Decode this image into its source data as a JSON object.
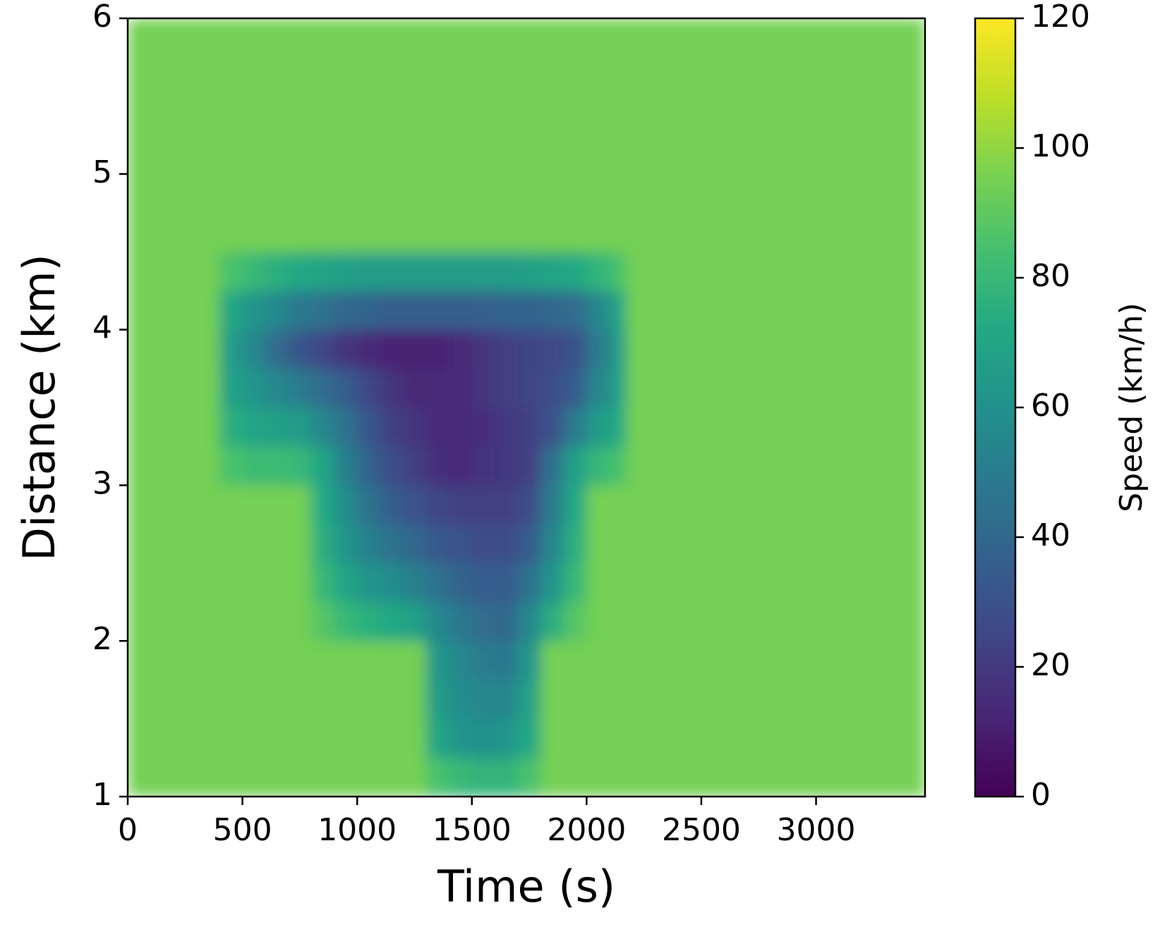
{
  "chart_data": {
    "type": "heatmap",
    "xlabel": "Time (s)",
    "ylabel": "Distance (km)",
    "colorbar_label": "Speed (km/h)",
    "colormap": "viridis",
    "xlim": [
      0,
      3475
    ],
    "xticks": [
      0,
      500,
      1000,
      1500,
      2000,
      2500,
      3000
    ],
    "ylim": [
      1,
      6
    ],
    "yticks": [
      1,
      2,
      3,
      4,
      5,
      6
    ],
    "zlim": [
      0,
      120
    ],
    "zticks": [
      0,
      20,
      40,
      60,
      80,
      100,
      120
    ],
    "x_bins": [
      0,
      400,
      500,
      600,
      700,
      800,
      900,
      1000,
      1100,
      1200,
      1300,
      1400,
      1500,
      1600,
      1700,
      1800,
      1900,
      2000,
      2100,
      2175,
      3475
    ],
    "y_bins": [
      1,
      1.25,
      1.5,
      1.75,
      2,
      2.25,
      2.5,
      2.75,
      3,
      3.25,
      3.5,
      3.75,
      4,
      4.25,
      4.5,
      6
    ],
    "z": [
      [
        95,
        95,
        95,
        95,
        95,
        95,
        95,
        95,
        95,
        95,
        85,
        80,
        78,
        78,
        85,
        95,
        95,
        95,
        95,
        95
      ],
      [
        95,
        95,
        95,
        95,
        95,
        95,
        95,
        95,
        95,
        95,
        70,
        62,
        60,
        62,
        72,
        95,
        95,
        95,
        95,
        95
      ],
      [
        95,
        95,
        95,
        95,
        95,
        95,
        95,
        95,
        95,
        95,
        65,
        58,
        55,
        55,
        68,
        95,
        95,
        95,
        95,
        95
      ],
      [
        95,
        95,
        95,
        95,
        95,
        95,
        95,
        95,
        95,
        95,
        62,
        55,
        50,
        48,
        62,
        95,
        95,
        95,
        95,
        95
      ],
      [
        95,
        95,
        95,
        95,
        95,
        88,
        80,
        75,
        72,
        68,
        55,
        48,
        42,
        40,
        55,
        75,
        88,
        95,
        95,
        95
      ],
      [
        95,
        95,
        95,
        95,
        95,
        80,
        70,
        62,
        58,
        52,
        45,
        38,
        35,
        35,
        45,
        62,
        80,
        95,
        95,
        95
      ],
      [
        95,
        95,
        95,
        95,
        95,
        75,
        62,
        52,
        45,
        40,
        33,
        30,
        28,
        28,
        35,
        55,
        75,
        95,
        95,
        95
      ],
      [
        95,
        95,
        95,
        95,
        95,
        72,
        58,
        45,
        35,
        30,
        25,
        22,
        22,
        22,
        28,
        50,
        72,
        95,
        95,
        95
      ],
      [
        95,
        85,
        82,
        82,
        80,
        70,
        52,
        38,
        28,
        22,
        16,
        15,
        17,
        20,
        22,
        45,
        68,
        80,
        85,
        95
      ],
      [
        95,
        75,
        70,
        68,
        65,
        55,
        45,
        32,
        22,
        18,
        15,
        15,
        16,
        20,
        22,
        30,
        50,
        65,
        72,
        95
      ],
      [
        95,
        68,
        62,
        55,
        50,
        42,
        35,
        25,
        18,
        14,
        14,
        15,
        18,
        22,
        24,
        28,
        35,
        55,
        68,
        95
      ],
      [
        95,
        65,
        55,
        42,
        32,
        25,
        18,
        14,
        12,
        11,
        12,
        14,
        18,
        22,
        24,
        26,
        30,
        50,
        65,
        95
      ],
      [
        95,
        70,
        62,
        55,
        48,
        45,
        40,
        38,
        36,
        36,
        36,
        36,
        37,
        38,
        38,
        40,
        42,
        55,
        70,
        95
      ],
      [
        95,
        85,
        80,
        75,
        72,
        70,
        68,
        66,
        66,
        66,
        66,
        66,
        66,
        66,
        68,
        70,
        72,
        78,
        85,
        95
      ],
      [
        95,
        95,
        95,
        95,
        95,
        95,
        95,
        95,
        95,
        95,
        95,
        95,
        95,
        95,
        95,
        95,
        95,
        95,
        95,
        95
      ]
    ]
  }
}
